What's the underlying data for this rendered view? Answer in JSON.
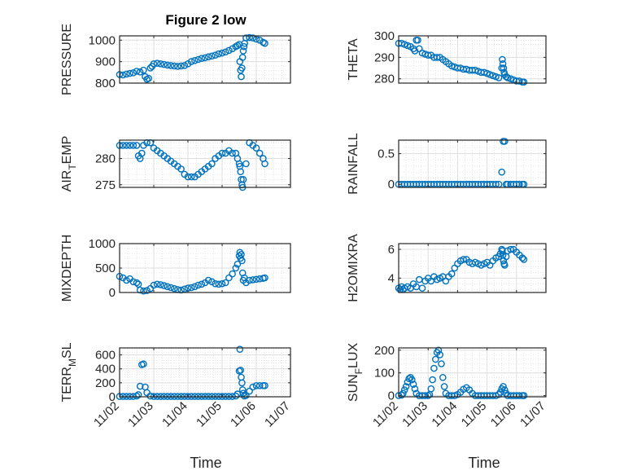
{
  "figure": {
    "title": "Figure 2 low",
    "xlabel": "Time",
    "x_ticks": [
      "11/02",
      "11/03",
      "11/04",
      "11/05",
      "11/06",
      "11/07"
    ],
    "marker_color": "#0072BD",
    "marker": "open-circle"
  },
  "chart_data": [
    {
      "type": "scatter",
      "ylabel": "PRESSURE",
      "ylim": [
        800,
        1020
      ],
      "yticks": [
        800,
        900,
        1000
      ],
      "grid": true,
      "x": [
        2.0,
        2.1,
        2.2,
        2.3,
        2.4,
        2.5,
        2.6,
        2.7,
        2.75,
        2.8,
        2.85,
        2.9,
        2.95,
        3.0,
        3.1,
        3.2,
        3.3,
        3.4,
        3.5,
        3.6,
        3.7,
        3.8,
        3.9,
        4.0,
        4.1,
        4.2,
        4.3,
        4.4,
        4.5,
        4.6,
        4.7,
        4.8,
        4.9,
        5.0,
        5.1,
        5.2,
        5.3,
        5.4,
        5.45,
        5.5,
        5.52,
        5.54,
        5.56,
        5.58,
        5.6,
        5.62,
        5.64,
        5.66,
        5.7,
        5.8,
        5.9,
        6.0,
        6.1,
        6.2,
        6.25
      ],
      "y": [
        840,
        838,
        842,
        845,
        848,
        855,
        852,
        860,
        830,
        818,
        822,
        870,
        878,
        890,
        892,
        890,
        887,
        884,
        882,
        880,
        878,
        880,
        882,
        890,
        900,
        905,
        910,
        915,
        918,
        922,
        926,
        930,
        936,
        940,
        945,
        952,
        960,
        970,
        975,
        980,
        900,
        860,
        830,
        870,
        920,
        950,
        970,
        985,
        1010,
        1012,
        1010,
        1005,
        1000,
        990,
        985
      ]
    },
    {
      "type": "scatter",
      "ylabel": "THETA",
      "ylim": [
        278,
        300
      ],
      "yticks": [
        280,
        290,
        300
      ],
      "grid": true,
      "x": [
        2.0,
        2.1,
        2.2,
        2.3,
        2.4,
        2.5,
        2.55,
        2.6,
        2.65,
        2.7,
        2.8,
        2.9,
        3.0,
        3.1,
        3.2,
        3.3,
        3.4,
        3.5,
        3.6,
        3.7,
        3.8,
        3.9,
        4.0,
        4.1,
        4.2,
        4.3,
        4.4,
        4.5,
        4.6,
        4.7,
        4.8,
        4.9,
        5.0,
        5.1,
        5.2,
        5.3,
        5.4,
        5.5,
        5.52,
        5.54,
        5.56,
        5.58,
        5.6,
        5.65,
        5.7,
        5.8,
        5.9,
        6.0,
        6.1,
        6.2,
        6.25
      ],
      "y": [
        296.5,
        296.5,
        296,
        295.5,
        295,
        294,
        293,
        298,
        298,
        294,
        292,
        291.5,
        291,
        291,
        290,
        290,
        290,
        289,
        288,
        287,
        286,
        285.5,
        285,
        285,
        284.5,
        284.5,
        284,
        284,
        284,
        283.5,
        283,
        283,
        282.5,
        282,
        281.5,
        281,
        280.5,
        285,
        289,
        287,
        285,
        283,
        282,
        281,
        280.5,
        280,
        279.5,
        279,
        279,
        278.5,
        278.5
      ]
    },
    {
      "type": "scatter",
      "ylabel": "AIR_TEMP",
      "ylim": [
        274.5,
        283.5
      ],
      "yticks": [
        275,
        280
      ],
      "grid": true,
      "x": [
        2.0,
        2.1,
        2.2,
        2.3,
        2.4,
        2.5,
        2.55,
        2.6,
        2.65,
        2.7,
        2.8,
        2.9,
        3.0,
        3.1,
        3.2,
        3.3,
        3.4,
        3.5,
        3.6,
        3.7,
        3.8,
        3.9,
        4.0,
        4.1,
        4.2,
        4.3,
        4.4,
        4.5,
        4.6,
        4.7,
        4.8,
        4.9,
        5.0,
        5.1,
        5.2,
        5.3,
        5.4,
        5.45,
        5.5,
        5.52,
        5.54,
        5.56,
        5.58,
        5.6,
        5.62,
        5.7,
        5.8,
        5.9,
        6.0,
        6.1,
        6.2,
        6.25
      ],
      "y": [
        282.5,
        282.5,
        282.5,
        282.5,
        282.5,
        282.5,
        280.5,
        280,
        281,
        282.5,
        283,
        283,
        282,
        281.5,
        281,
        280.5,
        280,
        279.5,
        279,
        278.5,
        278,
        277,
        276.5,
        276.5,
        276.5,
        277,
        277.5,
        278,
        278.5,
        279,
        280,
        280.5,
        281,
        281,
        281.5,
        281,
        281,
        280,
        279,
        278.5,
        277.5,
        276,
        275,
        274.5,
        276,
        279,
        283,
        282.5,
        282,
        281,
        280,
        279
      ]
    },
    {
      "type": "scatter",
      "ylabel": "RAINFALL",
      "ylim": [
        -0.05,
        0.72
      ],
      "yticks": [
        0,
        0.5
      ],
      "grid": true,
      "x": [
        2.0,
        2.1,
        2.2,
        2.3,
        2.4,
        2.5,
        2.6,
        2.7,
        2.8,
        2.9,
        3.0,
        3.1,
        3.2,
        3.3,
        3.4,
        3.5,
        3.6,
        3.7,
        3.8,
        3.9,
        4.0,
        4.1,
        4.2,
        4.3,
        4.4,
        4.5,
        4.6,
        4.7,
        4.8,
        4.9,
        5.0,
        5.1,
        5.2,
        5.3,
        5.4,
        5.5,
        5.55,
        5.6,
        5.65,
        5.7,
        5.8,
        5.9,
        6.0,
        6.1,
        6.2,
        6.25
      ],
      "y": [
        0,
        0,
        0,
        0,
        0,
        0,
        0,
        0,
        0,
        0,
        0,
        0,
        0,
        0,
        0,
        0,
        0,
        0,
        0,
        0,
        0,
        0,
        0,
        0,
        0,
        0,
        0,
        0,
        0,
        0,
        0,
        0,
        0,
        0,
        0,
        0.2,
        0.7,
        0.7,
        0,
        0,
        0,
        0,
        0,
        0,
        0,
        0
      ]
    },
    {
      "type": "scatter",
      "ylabel": "MIXDEPTH",
      "ylim": [
        0,
        1000
      ],
      "yticks": [
        0,
        500,
        1000
      ],
      "grid": true,
      "x": [
        2.0,
        2.1,
        2.2,
        2.3,
        2.4,
        2.5,
        2.55,
        2.6,
        2.7,
        2.8,
        2.9,
        3.0,
        3.1,
        3.2,
        3.3,
        3.4,
        3.5,
        3.6,
        3.7,
        3.8,
        3.9,
        4.0,
        4.1,
        4.2,
        4.3,
        4.4,
        4.5,
        4.6,
        4.7,
        4.8,
        4.9,
        5.0,
        5.1,
        5.2,
        5.3,
        5.4,
        5.45,
        5.5,
        5.52,
        5.54,
        5.56,
        5.58,
        5.6,
        5.62,
        5.65,
        5.7,
        5.8,
        5.9,
        6.0,
        6.1,
        6.2,
        6.25
      ],
      "y": [
        330,
        300,
        250,
        280,
        220,
        200,
        170,
        50,
        30,
        40,
        80,
        150,
        170,
        160,
        140,
        120,
        100,
        80,
        60,
        50,
        70,
        90,
        100,
        120,
        150,
        170,
        200,
        250,
        220,
        180,
        170,
        180,
        200,
        300,
        380,
        500,
        580,
        750,
        820,
        700,
        780,
        650,
        400,
        250,
        300,
        200,
        250,
        260,
        270,
        280,
        290,
        300
      ]
    },
    {
      "type": "scatter",
      "ylabel": "H2OMIXRA",
      "ylim": [
        3.0,
        6.4
      ],
      "yticks": [
        4,
        6
      ],
      "grid": true,
      "x": [
        2.0,
        2.05,
        2.1,
        2.15,
        2.2,
        2.3,
        2.4,
        2.5,
        2.6,
        2.7,
        2.8,
        2.9,
        3.0,
        3.1,
        3.2,
        3.3,
        3.4,
        3.5,
        3.6,
        3.7,
        3.8,
        3.9,
        4.0,
        4.1,
        4.2,
        4.3,
        4.4,
        4.5,
        4.6,
        4.7,
        4.8,
        4.9,
        5.0,
        5.1,
        5.2,
        5.3,
        5.4,
        5.45,
        5.5,
        5.52,
        5.54,
        5.56,
        5.58,
        5.6,
        5.65,
        5.7,
        5.8,
        5.9,
        6.0,
        6.1,
        6.2,
        6.25
      ],
      "y": [
        3.3,
        3.2,
        3.4,
        3.2,
        3.3,
        3.4,
        3.3,
        3.6,
        3.4,
        3.9,
        3.3,
        3.8,
        4.0,
        3.8,
        4.1,
        3.9,
        4.0,
        4.1,
        3.8,
        4.1,
        4.3,
        4.7,
        5.0,
        5.2,
        5.3,
        5.3,
        5.1,
        5.0,
        5.1,
        5.0,
        4.9,
        5.0,
        5.1,
        4.9,
        5.2,
        5.4,
        5.5,
        5.7,
        6.0,
        5.9,
        5.6,
        5.2,
        5.0,
        4.9,
        5.5,
        5.9,
        6.0,
        6.0,
        5.8,
        5.6,
        5.4,
        5.3
      ]
    },
    {
      "type": "scatter",
      "ylabel": "TERR_MSL",
      "ylim": [
        0,
        700
      ],
      "yticks": [
        0,
        200,
        400,
        600
      ],
      "grid": true,
      "x": [
        2.0,
        2.1,
        2.2,
        2.3,
        2.4,
        2.5,
        2.55,
        2.6,
        2.65,
        2.7,
        2.75,
        2.8,
        2.9,
        3.0,
        3.1,
        3.2,
        3.3,
        3.4,
        3.5,
        3.6,
        3.7,
        3.8,
        3.9,
        4.0,
        4.1,
        4.2,
        4.3,
        4.4,
        4.5,
        4.6,
        4.7,
        4.8,
        4.9,
        5.0,
        5.1,
        5.2,
        5.3,
        5.4,
        5.45,
        5.5,
        5.52,
        5.54,
        5.56,
        5.58,
        5.6,
        5.62,
        5.65,
        5.7,
        5.8,
        5.9,
        6.0,
        6.1,
        6.2,
        6.25
      ],
      "y": [
        5,
        5,
        5,
        5,
        5,
        10,
        30,
        150,
        460,
        470,
        140,
        60,
        10,
        5,
        5,
        5,
        5,
        5,
        5,
        5,
        5,
        5,
        5,
        5,
        5,
        5,
        5,
        5,
        5,
        5,
        5,
        5,
        5,
        5,
        5,
        5,
        5,
        10,
        40,
        370,
        680,
        380,
        280,
        200,
        100,
        50,
        10,
        20,
        80,
        140,
        160,
        160,
        160,
        160
      ]
    },
    {
      "type": "scatter",
      "ylabel": "SUN_FLUX",
      "ylim": [
        -5,
        210
      ],
      "yticks": [
        0,
        100,
        200
      ],
      "grid": true,
      "x": [
        2.0,
        2.1,
        2.15,
        2.2,
        2.25,
        2.3,
        2.35,
        2.4,
        2.45,
        2.5,
        2.55,
        2.6,
        2.7,
        2.8,
        2.9,
        3.0,
        3.05,
        3.1,
        3.15,
        3.2,
        3.25,
        3.3,
        3.35,
        3.4,
        3.45,
        3.5,
        3.55,
        3.6,
        3.7,
        3.8,
        3.9,
        4.0,
        4.1,
        4.2,
        4.3,
        4.4,
        4.5,
        4.6,
        4.7,
        4.8,
        4.9,
        5.0,
        5.1,
        5.2,
        5.3,
        5.4,
        5.45,
        5.5,
        5.55,
        5.6,
        5.65,
        5.7,
        5.8,
        5.9,
        6.0,
        6.1,
        6.2,
        6.25
      ],
      "y": [
        0,
        2,
        10,
        25,
        40,
        60,
        75,
        80,
        70,
        50,
        30,
        10,
        0,
        0,
        0,
        0,
        5,
        30,
        70,
        120,
        160,
        190,
        200,
        180,
        140,
        80,
        40,
        10,
        0,
        0,
        0,
        5,
        15,
        28,
        35,
        25,
        10,
        0,
        0,
        0,
        0,
        0,
        0,
        0,
        0,
        5,
        15,
        30,
        40,
        25,
        10,
        0,
        0,
        0,
        0,
        0,
        0,
        0
      ]
    }
  ]
}
